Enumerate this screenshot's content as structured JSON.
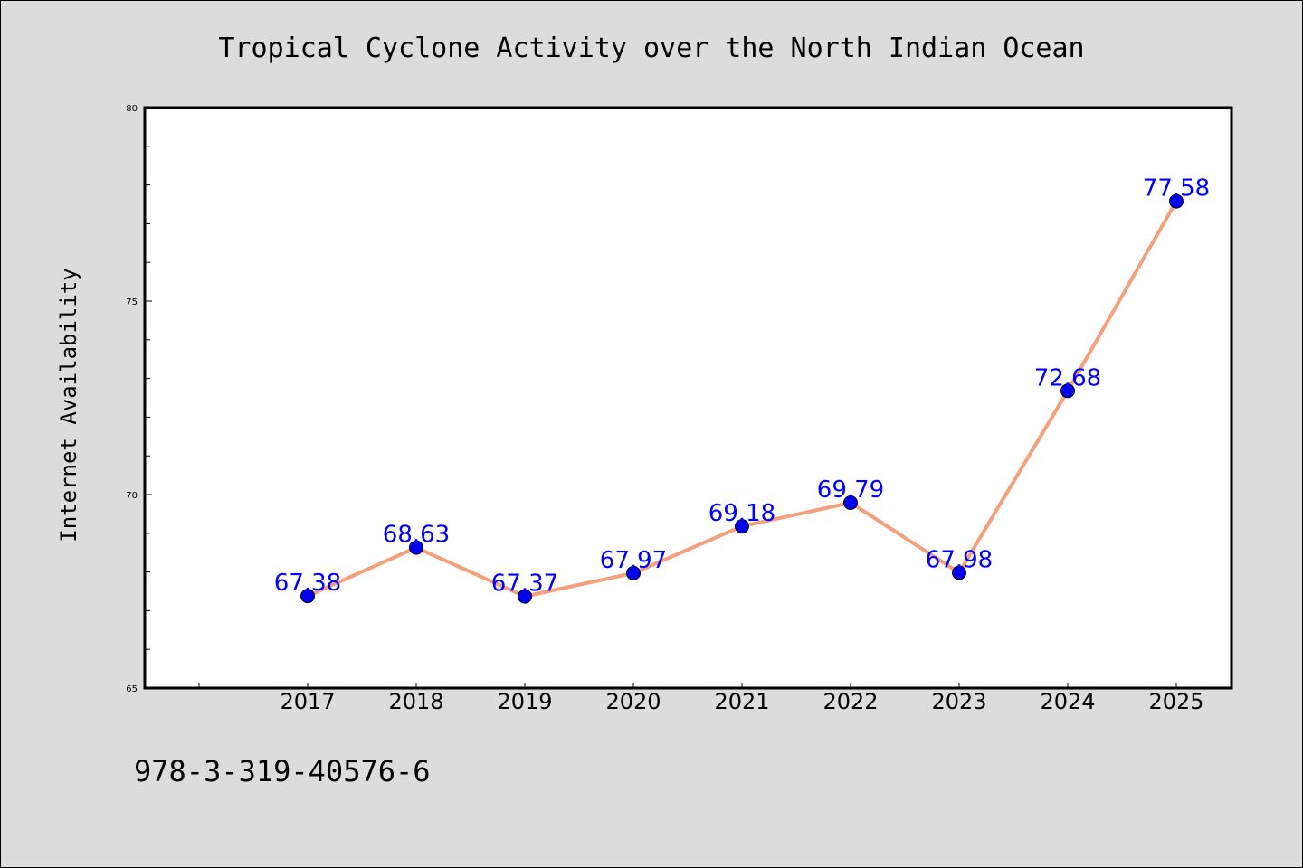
{
  "chart_data": {
    "type": "line",
    "title": "Tropical Cyclone Activity over the North Indian Ocean",
    "xlabel": "",
    "ylabel": "Internet Availability",
    "categories": [
      "2017",
      "2018",
      "2019",
      "2020",
      "2021",
      "2022",
      "2023",
      "2024",
      "2025"
    ],
    "series": [
      {
        "values": [
          67.38,
          68.63,
          67.37,
          67.97,
          69.18,
          69.79,
          67.98,
          72.68,
          77.58
        ]
      }
    ],
    "data_labels": [
      "67.38",
      "68.63",
      "67.37",
      "67.97",
      "69.18",
      "69.79",
      "67.98",
      "72.68",
      "77.58"
    ],
    "ylim": [
      65,
      80
    ],
    "yticks_major": [
      "65",
      "70",
      "75",
      "80"
    ],
    "grid": false,
    "line_color": "#f4a07c",
    "marker_color": "#0000ee",
    "label_color": "#0000ff"
  },
  "footer": {
    "text": "978-3-319-40576-6"
  }
}
